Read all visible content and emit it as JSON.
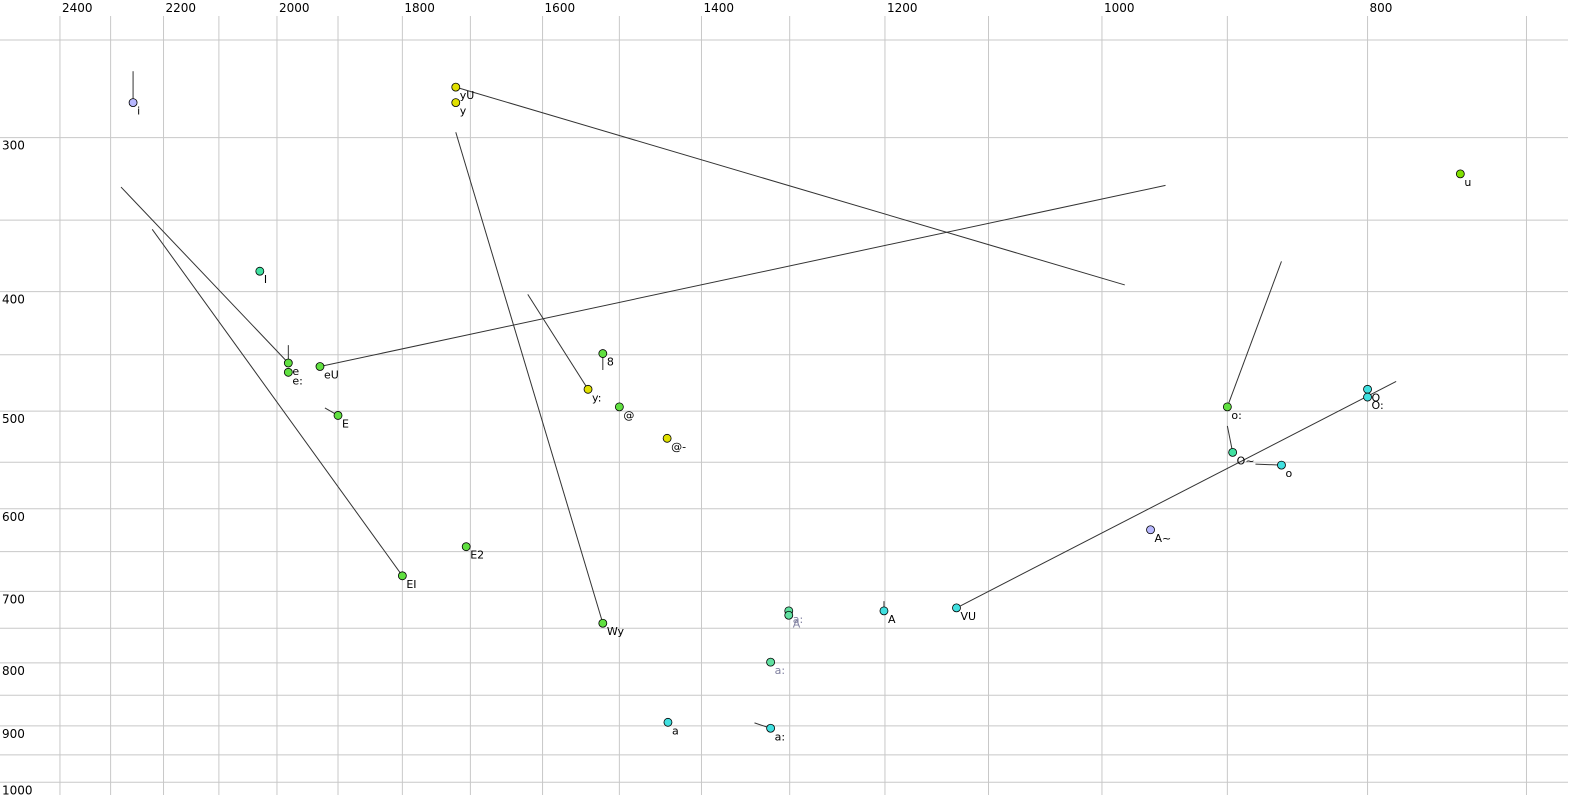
{
  "chart_data": {
    "type": "scatter",
    "xscale": "log",
    "yscale": "log",
    "xlim": [
      2524,
      676
    ],
    "ylim": [
      232,
      1024
    ],
    "xticks": [
      2400,
      2200,
      2000,
      1800,
      1600,
      1400,
      1200,
      1000,
      800
    ],
    "xminor": [
      2300,
      2100,
      1900,
      1700,
      1500,
      1300,
      1100,
      900,
      700
    ],
    "yticks": [
      300,
      400,
      500,
      600,
      700,
      800,
      900,
      1000
    ],
    "yminor": [
      250,
      350,
      450,
      550,
      650,
      750,
      850,
      950
    ],
    "grid": true,
    "points": [
      {
        "label": "i",
        "x": 2257,
        "y": 281,
        "color": "#b8b8ff"
      },
      {
        "label": "yU",
        "x": 1721,
        "y": 273,
        "color": "#e0e000"
      },
      {
        "label": "y",
        "x": 1721,
        "y": 281,
        "color": "#e0e000"
      },
      {
        "label": "u",
        "x": 740,
        "y": 321,
        "color": "#80e000"
      },
      {
        "label": "I",
        "x": 2029,
        "y": 385,
        "color": "#40e0a0"
      },
      {
        "label": "e",
        "x": 1981,
        "y": 457,
        "color": "#60e040"
      },
      {
        "label": "e:",
        "x": 1981,
        "y": 465,
        "color": "#60e040"
      },
      {
        "label": "eU",
        "x": 1929,
        "y": 460,
        "color": "#60e040"
      },
      {
        "label": "E",
        "x": 1900,
        "y": 504,
        "color": "#60e040"
      },
      {
        "label": "8",
        "x": 1521,
        "y": 449,
        "color": "#60e040"
      },
      {
        "label": "y:",
        "x": 1540,
        "y": 480,
        "color": "#e0e000"
      },
      {
        "label": "@",
        "x": 1500,
        "y": 496,
        "color": "#60e040"
      },
      {
        "label": "@-",
        "x": 1441,
        "y": 526,
        "color": "#e0e000"
      },
      {
        "label": "E2",
        "x": 1706,
        "y": 644,
        "color": "#60e040"
      },
      {
        "label": "EI",
        "x": 1800,
        "y": 680,
        "color": "#60e040"
      },
      {
        "label": "Wy",
        "x": 1521,
        "y": 743,
        "color": "#60e040"
      },
      {
        "label": "a:",
        "x": 1301,
        "y": 726,
        "color": "#60e0a0",
        "label_color": "#8080a0"
      },
      {
        "label": "A",
        "x": 1301,
        "y": 732,
        "color": "#60e0a0",
        "label_color": "#8080a0"
      },
      {
        "label": "a:",
        "x": 1321,
        "y": 799,
        "color": "#60e0a0",
        "label_color": "#8080a0"
      },
      {
        "label": "A",
        "x": 1201,
        "y": 726,
        "color": "#40e0e0"
      },
      {
        "label": "VU",
        "x": 1130,
        "y": 722,
        "color": "#40e0e0"
      },
      {
        "label": "A~",
        "x": 960,
        "y": 624,
        "color": "#b8b8ff"
      },
      {
        "label": "o:",
        "x": 900,
        "y": 496,
        "color": "#60e040"
      },
      {
        "label": "O~",
        "x": 896,
        "y": 540,
        "color": "#40e0a0"
      },
      {
        "label": "o",
        "x": 860,
        "y": 553,
        "color": "#40e0e0"
      },
      {
        "label": "O",
        "x": 800,
        "y": 480,
        "color": "#40e0e0"
      },
      {
        "label": "O:",
        "x": 800,
        "y": 487,
        "color": "#40e0e0"
      },
      {
        "label": "a",
        "x": 1440,
        "y": 894,
        "color": "#40e0e0"
      },
      {
        "label": "a:",
        "x": 1321,
        "y": 904,
        "color": "#40e0e0"
      }
    ],
    "segments": [
      [
        2257,
        281,
        2257,
        265
      ],
      [
        1721,
        273,
        981,
        395
      ],
      [
        1721,
        297,
        1521,
        743
      ],
      [
        2280,
        329,
        1981,
        457
      ],
      [
        2221,
        356,
        1800,
        680
      ],
      [
        1981,
        457,
        1981,
        442
      ],
      [
        1929,
        460,
        948,
        328
      ],
      [
        1900,
        504,
        1921,
        497
      ],
      [
        1620,
        402,
        1540,
        480
      ],
      [
        1521,
        449,
        1521,
        463
      ],
      [
        1201,
        726,
        1201,
        713
      ],
      [
        1130,
        722,
        781,
        473
      ],
      [
        900,
        496,
        860,
        378
      ],
      [
        896,
        540,
        900,
        514
      ],
      [
        879,
        552,
        860,
        553
      ],
      [
        1321,
        904,
        1339,
        895
      ]
    ]
  }
}
